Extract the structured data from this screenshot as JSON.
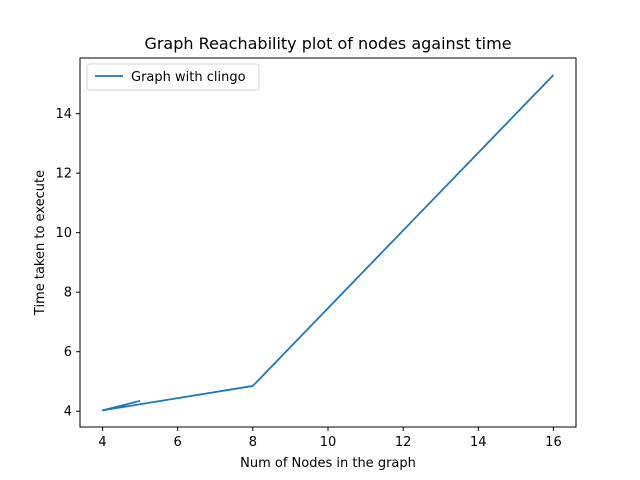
{
  "chart_data": {
    "type": "line",
    "title": "Graph Reachability plot of nodes against time",
    "xlabel": "Num of Nodes in the graph",
    "ylabel": "Time taken to execute",
    "xlim": [
      3.4,
      16.6
    ],
    "ylim": [
      3.47,
      15.87
    ],
    "xticks": [
      4,
      6,
      8,
      10,
      12,
      14,
      16
    ],
    "yticks": [
      4,
      6,
      8,
      10,
      12,
      14
    ],
    "grid": false,
    "legend_position": "top-left",
    "series": [
      {
        "name": "Graph with clingo",
        "color": "#1f77b4",
        "x": [
          5,
          4,
          8,
          16
        ],
        "y": [
          4.35,
          4.03,
          4.85,
          15.3
        ]
      }
    ]
  }
}
